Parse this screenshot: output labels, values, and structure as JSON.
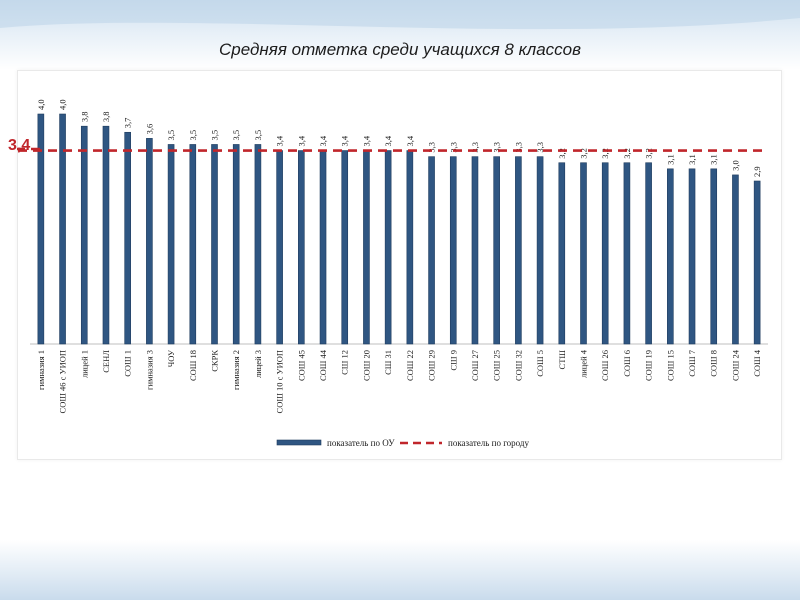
{
  "title": "Средняя отметка среди учащихся 8 классов",
  "city_label": "3,4",
  "colors": {
    "bar": "#2f5682",
    "bar_dark": "#1f3c5e",
    "city_line": "#c0262b",
    "text": "#1a1a1a"
  },
  "chart_data": {
    "type": "bar",
    "title": "Средняя отметка среди учащихся 8 классов",
    "categories": [
      "гимназия 1",
      "СОШ 46 с УИОП",
      "лицей 1",
      "СЕНЛ",
      "СОШ 1",
      "гимназия 3",
      "ЧОУ",
      "СОШ 18",
      "СКРК",
      "гимназия 2",
      "лицей 3",
      "СОШ 10 с УИОП",
      "СОШ 45",
      "СОШ 44",
      "СШ 12",
      "СОШ 20",
      "СШ 31",
      "СОШ 22",
      "СОШ 29",
      "СШ 9",
      "СОШ 27",
      "СОШ 25",
      "СОШ 32",
      "СОШ 5",
      "СТШ",
      "лицей 4",
      "СОШ 26",
      "СОШ 6",
      "СОШ 19",
      "СОШ 15",
      "СОШ 7",
      "СОШ 8",
      "СОШ 24",
      "СОШ 4"
    ],
    "values": [
      4.0,
      4.0,
      3.8,
      3.8,
      3.7,
      3.6,
      3.5,
      3.5,
      3.5,
      3.5,
      3.5,
      3.4,
      3.4,
      3.4,
      3.4,
      3.4,
      3.4,
      3.4,
      3.3,
      3.3,
      3.3,
      3.3,
      3.3,
      3.3,
      3.2,
      3.2,
      3.2,
      3.2,
      3.2,
      3.1,
      3.1,
      3.1,
      3.0,
      2.9
    ],
    "value_labels": [
      "4,0",
      "4,0",
      "3,8",
      "3,8",
      "3,7",
      "3,6",
      "3,5",
      "3,5",
      "3,5",
      "3,5",
      "3,5",
      "3,4",
      "3,4",
      "3,4",
      "3,4",
      "3,4",
      "3,4",
      "3,4",
      "3,3",
      "3,3",
      "3,3",
      "3,3",
      "3,3",
      "3,3",
      "3,2",
      "3,2",
      "3,2",
      "3,2",
      "3,2",
      "3,1",
      "3,1",
      "3,1",
      "3,0",
      "2,9"
    ],
    "reference_line": {
      "name": "показатель по городу",
      "value": 3.4,
      "label": "3,4"
    },
    "series": [
      {
        "name": "показатель по ОУ"
      }
    ],
    "legend": [
      "показатель по ОУ",
      "показатель по городу"
    ],
    "legend_position": "bottom",
    "ylim": [
      0,
      4.0
    ],
    "grid": false
  }
}
